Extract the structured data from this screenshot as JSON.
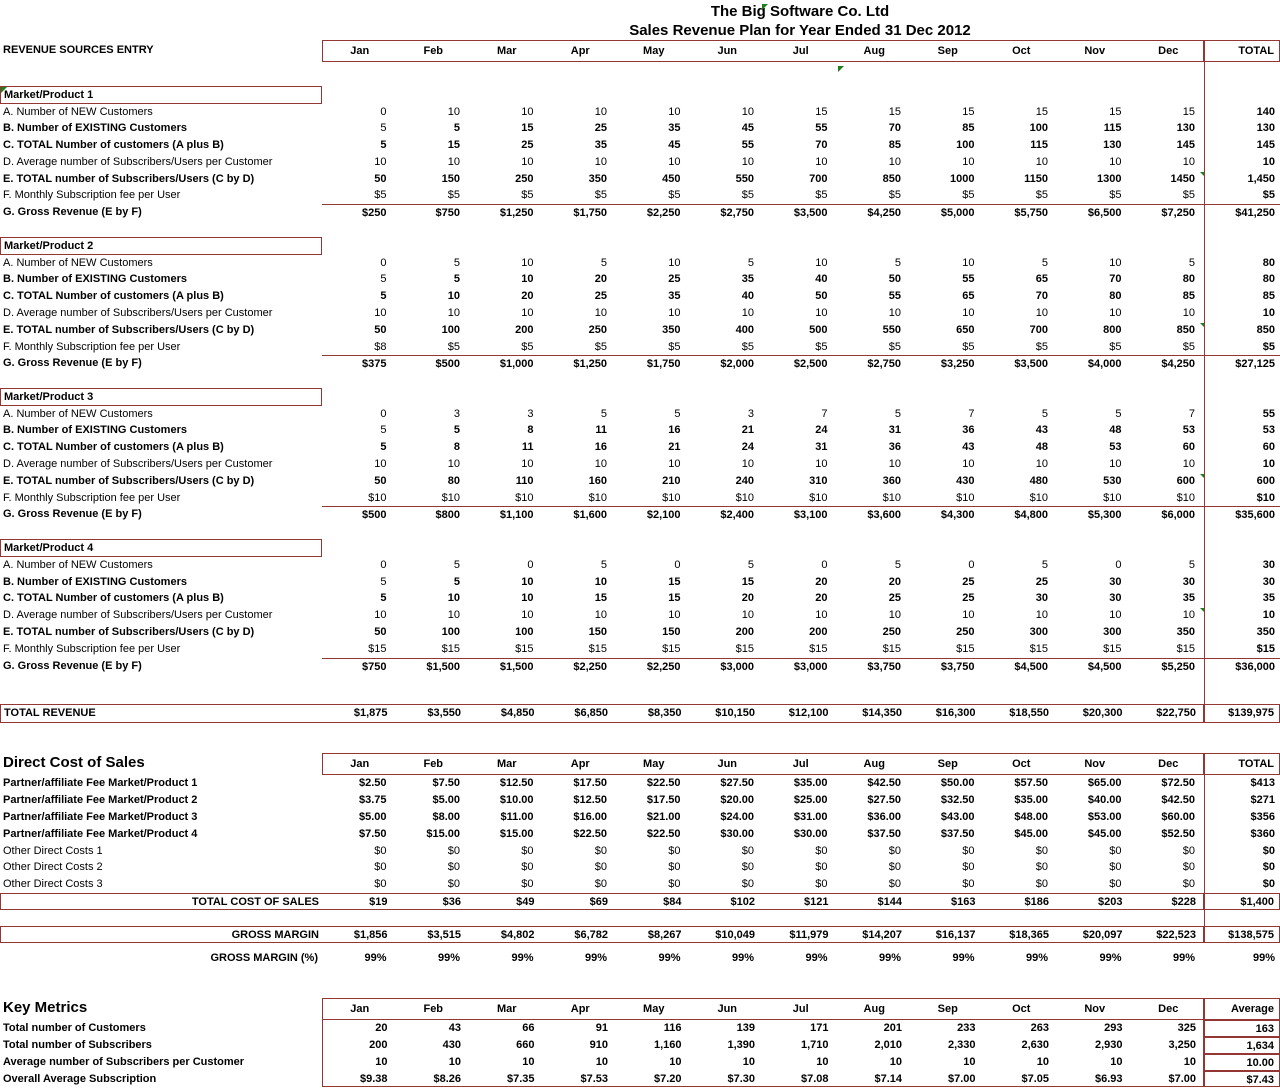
{
  "colors": {
    "border": "#943634",
    "marker": "#1e7e1e"
  },
  "title": {
    "line1": "The Big Software Co. Ltd",
    "line2": "Sales Revenue Plan for Year Ended 31 Dec 2012"
  },
  "months": [
    "Jan",
    "Feb",
    "Mar",
    "Apr",
    "May",
    "Jun",
    "Jul",
    "Aug",
    "Sep",
    "Oct",
    "Nov",
    "Dec"
  ],
  "revenue": {
    "header_label": "REVENUE SOURCES ENTRY",
    "total_label": "TOTAL",
    "products": [
      {
        "name": "Market/Product 1",
        "section_marker": true,
        "rows": [
          {
            "label": "A. Number of NEW Customers",
            "values": [
              "0",
              "10",
              "10",
              "10",
              "10",
              "10",
              "15",
              "15",
              "15",
              "15",
              "15",
              "15"
            ],
            "total": "140",
            "bold": false
          },
          {
            "label": "B. Number of EXISTING Customers",
            "values": [
              "5",
              "5",
              "15",
              "25",
              "35",
              "45",
              "55",
              "70",
              "85",
              "100",
              "115",
              "130"
            ],
            "total": "130",
            "bold": true,
            "jan_plain": true
          },
          {
            "label": "C. TOTAL Number of customers (A plus B)",
            "values": [
              "5",
              "15",
              "25",
              "35",
              "45",
              "55",
              "70",
              "85",
              "100",
              "115",
              "130",
              "145"
            ],
            "total": "145",
            "bold": true
          },
          {
            "label": "D. Average number of Subscribers/Users per Customer",
            "values": [
              "10",
              "10",
              "10",
              "10",
              "10",
              "10",
              "10",
              "10",
              "10",
              "10",
              "10",
              "10"
            ],
            "total": "10",
            "bold": false
          },
          {
            "label": "E. TOTAL number of Subscribers/Users (C by D)",
            "values": [
              "50",
              "150",
              "250",
              "350",
              "450",
              "550",
              "700",
              "850",
              "1000",
              "1150",
              "1300",
              "1450"
            ],
            "total": "1,450",
            "bold": true,
            "marker_col": 11
          },
          {
            "label": "F. Monthly Subscription fee per User",
            "values": [
              "$5",
              "$5",
              "$5",
              "$5",
              "$5",
              "$5",
              "$5",
              "$5",
              "$5",
              "$5",
              "$5",
              "$5"
            ],
            "total": "$5",
            "bold": false
          },
          {
            "label": "G. Gross Revenue (E by F)",
            "values": [
              "$250",
              "$750",
              "$1,250",
              "$1,750",
              "$2,250",
              "$2,750",
              "$3,500",
              "$4,250",
              "$5,000",
              "$5,750",
              "$6,500",
              "$7,250"
            ],
            "total": "$41,250",
            "bold": true
          }
        ]
      },
      {
        "name": "Market/Product 2",
        "rows": [
          {
            "label": "A. Number of NEW Customers",
            "values": [
              "0",
              "5",
              "10",
              "5",
              "10",
              "5",
              "10",
              "5",
              "10",
              "5",
              "10",
              "5"
            ],
            "total": "80",
            "bold": false
          },
          {
            "label": "B. Number of EXISTING Customers",
            "values": [
              "5",
              "5",
              "10",
              "20",
              "25",
              "35",
              "40",
              "50",
              "55",
              "65",
              "70",
              "80"
            ],
            "total": "80",
            "bold": true,
            "jan_plain": true
          },
          {
            "label": "C. TOTAL Number of customers (A plus B)",
            "values": [
              "5",
              "10",
              "20",
              "25",
              "35",
              "40",
              "50",
              "55",
              "65",
              "70",
              "80",
              "85"
            ],
            "total": "85",
            "bold": true
          },
          {
            "label": "D. Average number of Subscribers/Users per Customer",
            "values": [
              "10",
              "10",
              "10",
              "10",
              "10",
              "10",
              "10",
              "10",
              "10",
              "10",
              "10",
              "10"
            ],
            "total": "10",
            "bold": false
          },
          {
            "label": "E. TOTAL number of Subscribers/Users (C by D)",
            "values": [
              "50",
              "100",
              "200",
              "250",
              "350",
              "400",
              "500",
              "550",
              "650",
              "700",
              "800",
              "850"
            ],
            "total": "850",
            "bold": true,
            "marker_col": 11
          },
          {
            "label": "F. Monthly Subscription fee per User",
            "values": [
              "$8",
              "$5",
              "$5",
              "$5",
              "$5",
              "$5",
              "$5",
              "$5",
              "$5",
              "$5",
              "$5",
              "$5"
            ],
            "total": "$5",
            "bold": false
          },
          {
            "label": "G. Gross Revenue (E by F)",
            "values": [
              "$375",
              "$500",
              "$1,000",
              "$1,250",
              "$1,750",
              "$2,000",
              "$2,500",
              "$2,750",
              "$3,250",
              "$3,500",
              "$4,000",
              "$4,250"
            ],
            "total": "$27,125",
            "bold": true
          }
        ]
      },
      {
        "name": "Market/Product 3",
        "rows": [
          {
            "label": "A. Number of NEW Customers",
            "values": [
              "0",
              "3",
              "3",
              "5",
              "5",
              "3",
              "7",
              "5",
              "7",
              "5",
              "5",
              "7"
            ],
            "total": "55",
            "bold": false
          },
          {
            "label": "B. Number of EXISTING Customers",
            "values": [
              "5",
              "5",
              "8",
              "11",
              "16",
              "21",
              "24",
              "31",
              "36",
              "43",
              "48",
              "53"
            ],
            "total": "53",
            "bold": true,
            "jan_plain": true
          },
          {
            "label": "C. TOTAL Number of customers (A plus B)",
            "values": [
              "5",
              "8",
              "11",
              "16",
              "21",
              "24",
              "31",
              "36",
              "43",
              "48",
              "53",
              "60"
            ],
            "total": "60",
            "bold": true
          },
          {
            "label": "D. Average number of Subscribers/Users per Customer",
            "values": [
              "10",
              "10",
              "10",
              "10",
              "10",
              "10",
              "10",
              "10",
              "10",
              "10",
              "10",
              "10"
            ],
            "total": "10",
            "bold": false
          },
          {
            "label": "E. TOTAL number of Subscribers/Users (C by D)",
            "values": [
              "50",
              "80",
              "110",
              "160",
              "210",
              "240",
              "310",
              "360",
              "430",
              "480",
              "530",
              "600"
            ],
            "total": "600",
            "bold": true,
            "marker_col": 11
          },
          {
            "label": "F. Monthly Subscription fee per User",
            "values": [
              "$10",
              "$10",
              "$10",
              "$10",
              "$10",
              "$10",
              "$10",
              "$10",
              "$10",
              "$10",
              "$10",
              "$10"
            ],
            "total": "$10",
            "bold": false
          },
          {
            "label": "G. Gross Revenue (E by F)",
            "values": [
              "$500",
              "$800",
              "$1,100",
              "$1,600",
              "$2,100",
              "$2,400",
              "$3,100",
              "$3,600",
              "$4,300",
              "$4,800",
              "$5,300",
              "$6,000"
            ],
            "total": "$35,600",
            "bold": true
          }
        ]
      },
      {
        "name": "Market/Product 4",
        "rows": [
          {
            "label": "A. Number of NEW Customers",
            "values": [
              "0",
              "5",
              "0",
              "5",
              "0",
              "5",
              "0",
              "5",
              "0",
              "5",
              "0",
              "5"
            ],
            "total": "30",
            "bold": false
          },
          {
            "label": "B. Number of EXISTING Customers",
            "values": [
              "5",
              "5",
              "10",
              "10",
              "15",
              "15",
              "20",
              "20",
              "25",
              "25",
              "30",
              "30"
            ],
            "total": "30",
            "bold": true,
            "jan_plain": true
          },
          {
            "label": "C. TOTAL Number of customers (A plus B)",
            "values": [
              "5",
              "10",
              "10",
              "15",
              "15",
              "20",
              "20",
              "25",
              "25",
              "30",
              "30",
              "35"
            ],
            "total": "35",
            "bold": true
          },
          {
            "label": "D. Average number of Subscribers/Users per Customer",
            "values": [
              "10",
              "10",
              "10",
              "10",
              "10",
              "10",
              "10",
              "10",
              "10",
              "10",
              "10",
              "10"
            ],
            "total": "10",
            "bold": false,
            "marker_col": 11
          },
          {
            "label": "E. TOTAL number of Subscribers/Users (C by D)",
            "values": [
              "50",
              "100",
              "100",
              "150",
              "150",
              "200",
              "200",
              "250",
              "250",
              "300",
              "300",
              "350"
            ],
            "total": "350",
            "bold": true
          },
          {
            "label": "F. Monthly Subscription fee per User",
            "values": [
              "$15",
              "$15",
              "$15",
              "$15",
              "$15",
              "$15",
              "$15",
              "$15",
              "$15",
              "$15",
              "$15",
              "$15"
            ],
            "total": "$15",
            "bold": false
          },
          {
            "label": "G. Gross Revenue (E by F)",
            "values": [
              "$750",
              "$1,500",
              "$1,500",
              "$2,250",
              "$2,250",
              "$3,000",
              "$3,000",
              "$3,750",
              "$3,750",
              "$4,500",
              "$4,500",
              "$5,250"
            ],
            "total": "$36,000",
            "bold": true
          }
        ]
      }
    ],
    "total_row": {
      "label": "TOTAL REVENUE",
      "values": [
        "$1,875",
        "$3,550",
        "$4,850",
        "$6,850",
        "$8,350",
        "$10,150",
        "$12,100",
        "$14,350",
        "$16,300",
        "$18,550",
        "$20,300",
        "$22,750"
      ],
      "total": "$139,975"
    }
  },
  "direct_cost": {
    "title": "Direct Cost of Sales",
    "total_label": "TOTAL",
    "rows": [
      {
        "label": "Partner/affiliate Fee Market/Product 1",
        "values": [
          "$2.50",
          "$7.50",
          "$12.50",
          "$17.50",
          "$22.50",
          "$27.50",
          "$35.00",
          "$42.50",
          "$50.00",
          "$57.50",
          "$65.00",
          "$72.50"
        ],
        "total": "$413",
        "bold": true
      },
      {
        "label": "Partner/affiliate Fee Market/Product 2",
        "values": [
          "$3.75",
          "$5.00",
          "$10.00",
          "$12.50",
          "$17.50",
          "$20.00",
          "$25.00",
          "$27.50",
          "$32.50",
          "$35.00",
          "$40.00",
          "$42.50"
        ],
        "total": "$271",
        "bold": true
      },
      {
        "label": "Partner/affiliate Fee Market/Product 3",
        "values": [
          "$5.00",
          "$8.00",
          "$11.00",
          "$16.00",
          "$21.00",
          "$24.00",
          "$31.00",
          "$36.00",
          "$43.00",
          "$48.00",
          "$53.00",
          "$60.00"
        ],
        "total": "$356",
        "bold": true
      },
      {
        "label": "Partner/affiliate Fee Market/Product 4",
        "values": [
          "$7.50",
          "$15.00",
          "$15.00",
          "$22.50",
          "$22.50",
          "$30.00",
          "$30.00",
          "$37.50",
          "$37.50",
          "$45.00",
          "$45.00",
          "$52.50"
        ],
        "total": "$360",
        "bold": true
      },
      {
        "label": "Other Direct Costs 1",
        "values": [
          "$0",
          "$0",
          "$0",
          "$0",
          "$0",
          "$0",
          "$0",
          "$0",
          "$0",
          "$0",
          "$0",
          "$0"
        ],
        "total": "$0",
        "bold": false
      },
      {
        "label": "Other Direct Costs 2",
        "values": [
          "$0",
          "$0",
          "$0",
          "$0",
          "$0",
          "$0",
          "$0",
          "$0",
          "$0",
          "$0",
          "$0",
          "$0"
        ],
        "total": "$0",
        "bold": false
      },
      {
        "label": "Other Direct Costs 3",
        "values": [
          "$0",
          "$0",
          "$0",
          "$0",
          "$0",
          "$0",
          "$0",
          "$0",
          "$0",
          "$0",
          "$0",
          "$0"
        ],
        "total": "$0",
        "bold": false
      }
    ],
    "total_cost_row": {
      "label": "TOTAL COST OF SALES",
      "values": [
        "$19",
        "$36",
        "$49",
        "$69",
        "$84",
        "$102",
        "$121",
        "$144",
        "$163",
        "$186",
        "$203",
        "$228"
      ],
      "total": "$1,400"
    },
    "gross_margin_row": {
      "label": "GROSS MARGIN",
      "values": [
        "$1,856",
        "$3,515",
        "$4,802",
        "$6,782",
        "$8,267",
        "$10,049",
        "$11,979",
        "$14,207",
        "$16,137",
        "$18,365",
        "$20,097",
        "$22,523"
      ],
      "total": "$138,575"
    },
    "gross_margin_pct_row": {
      "label": "GROSS MARGIN (%)",
      "values": [
        "99%",
        "99%",
        "99%",
        "99%",
        "99%",
        "99%",
        "99%",
        "99%",
        "99%",
        "99%",
        "99%",
        "99%"
      ],
      "total": "99%"
    }
  },
  "key_metrics": {
    "title": "Key Metrics",
    "avg_label": "Average",
    "rows": [
      {
        "label": "Total number of Customers",
        "values": [
          "20",
          "43",
          "66",
          "91",
          "116",
          "139",
          "171",
          "201",
          "233",
          "263",
          "293",
          "325"
        ],
        "total": "163"
      },
      {
        "label": "Total number of Subscribers",
        "values": [
          "200",
          "430",
          "660",
          "910",
          "1,160",
          "1,390",
          "1,710",
          "2,010",
          "2,330",
          "2,630",
          "2,930",
          "3,250"
        ],
        "total": "1,634"
      },
      {
        "label": "Average number of Subscribers per Customer",
        "values": [
          "10",
          "10",
          "10",
          "10",
          "10",
          "10",
          "10",
          "10",
          "10",
          "10",
          "10",
          "10"
        ],
        "total": "10.00"
      },
      {
        "label": "Overall Average Subscription",
        "values": [
          "$9.38",
          "$8.26",
          "$7.35",
          "$7.53",
          "$7.20",
          "$7.30",
          "$7.08",
          "$7.14",
          "$7.00",
          "$7.05",
          "$6.93",
          "$7.00"
        ],
        "total": "$7.43"
      }
    ]
  }
}
